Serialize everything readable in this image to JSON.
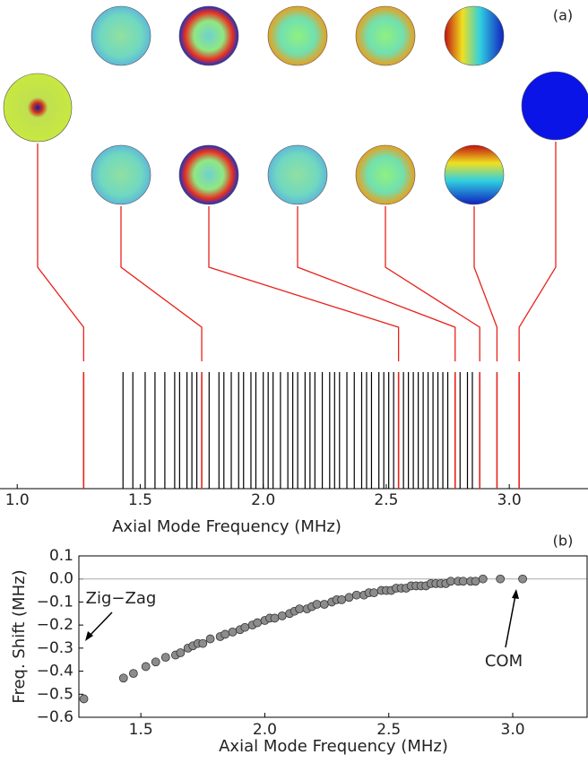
{
  "charts": [
    {
      "type": "spectrum",
      "label": "(a)",
      "xlabel": "Axial Mode Frequency (MHz)",
      "xlim": [
        0.93,
        3.32
      ],
      "xticks": [
        {
          "value": 1,
          "label": "1.0"
        },
        1.5,
        {
          "value": 2,
          "label": "2.0"
        },
        2.5,
        {
          "value": 3,
          "label": "3.0"
        }
      ],
      "series": [
        {
          "color": "#000000",
          "values": [
            1.43,
            1.47,
            1.52,
            1.56,
            1.6,
            1.64,
            1.66,
            1.69,
            1.71,
            1.73,
            1.78,
            1.82,
            1.84,
            1.87,
            1.9,
            1.92,
            1.95,
            1.97,
            2.0,
            2.02,
            2.04,
            2.07,
            2.1,
            2.12,
            2.14,
            2.17,
            2.19,
            2.21,
            2.24,
            2.27,
            2.29,
            2.31,
            2.34,
            2.37,
            2.4,
            2.42,
            2.44,
            2.47,
            2.49,
            2.51,
            2.53,
            2.57,
            2.59,
            2.61,
            2.63,
            2.65,
            2.67,
            2.69,
            2.71,
            2.73,
            2.75,
            2.8,
            2.83,
            2.85
          ]
        },
        {
          "color": "#e8221b",
          "values": [
            1.27,
            1.75,
            2.55,
            2.78,
            2.88,
            2.95,
            3.04
          ]
        }
      ]
    },
    {
      "type": "scatter",
      "label": "(b)",
      "xlabel": "Axial Mode Frequency (MHz)",
      "ylabel": "Freq. Shift (MHz)",
      "color": "#8c8c8c",
      "xlim": [
        1.25,
        3.3
      ],
      "ylim": [
        -0.6,
        0.1
      ],
      "xticks": [
        1.5,
        {
          "value": 2,
          "label": "2.0"
        },
        2.5,
        {
          "value": 3,
          "label": "3.0"
        }
      ],
      "yticks": [
        {
          "value": -0.6,
          "label": "−0.6"
        },
        {
          "value": -0.5,
          "label": "−0.5"
        },
        {
          "value": -0.4,
          "label": "−0.4"
        },
        {
          "value": -0.3,
          "label": "−0.3"
        },
        {
          "value": -0.2,
          "label": "−0.2"
        },
        {
          "value": -0.1,
          "label": "−0.1"
        },
        {
          "value": 0,
          "label": "0.0"
        },
        0.1
      ],
      "x": [
        1.27,
        1.43,
        1.47,
        1.52,
        1.56,
        1.6,
        1.64,
        1.66,
        1.69,
        1.71,
        1.73,
        1.75,
        1.78,
        1.82,
        1.84,
        1.87,
        1.9,
        1.92,
        1.95,
        1.97,
        2.0,
        2.02,
        2.04,
        2.07,
        2.1,
        2.12,
        2.14,
        2.17,
        2.19,
        2.21,
        2.24,
        2.27,
        2.29,
        2.31,
        2.34,
        2.37,
        2.4,
        2.42,
        2.44,
        2.47,
        2.49,
        2.51,
        2.53,
        2.55,
        2.57,
        2.59,
        2.61,
        2.63,
        2.65,
        2.67,
        2.69,
        2.71,
        2.73,
        2.75,
        2.78,
        2.8,
        2.83,
        2.85,
        2.88,
        2.95,
        3.04
      ],
      "values": [
        -0.52,
        -0.43,
        -0.41,
        -0.38,
        -0.36,
        -0.34,
        -0.33,
        -0.32,
        -0.3,
        -0.29,
        -0.28,
        -0.28,
        -0.26,
        -0.25,
        -0.24,
        -0.23,
        -0.22,
        -0.21,
        -0.2,
        -0.19,
        -0.18,
        -0.17,
        -0.17,
        -0.16,
        -0.15,
        -0.14,
        -0.13,
        -0.13,
        -0.12,
        -0.11,
        -0.11,
        -0.1,
        -0.09,
        -0.09,
        -0.08,
        -0.07,
        -0.07,
        -0.06,
        -0.06,
        -0.05,
        -0.05,
        -0.05,
        -0.04,
        -0.04,
        -0.04,
        -0.03,
        -0.03,
        -0.03,
        -0.03,
        -0.02,
        -0.02,
        -0.02,
        -0.02,
        -0.01,
        -0.01,
        -0.01,
        -0.01,
        -0.01,
        0,
        0,
        0
      ],
      "annotations": [
        "Zig−Zag",
        "COM"
      ]
    }
  ]
}
